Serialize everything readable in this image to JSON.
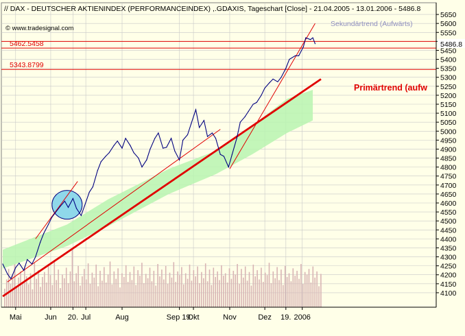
{
  "header": {
    "glyph": "//",
    "title": "DAX  - DEUTSCHER AKTIENINDEX (PERFORMANCEINDEX) ,.GDAXIS, Tageschart [Close] - 21.04.2005 - 13.01.2006 - 5486.8",
    "watermark": "© www.tradesignal.com"
  },
  "colors": {
    "background": "#ffffe8",
    "price_line": "#000080",
    "trend_line": "#e00000",
    "channel_fill": "#b8f5b0",
    "volume": "#d8b4b4",
    "grid": "#c8c8c8",
    "circle_fill": "#8fd8ea",
    "secondary_label": "#9090c0"
  },
  "chart_data": {
    "type": "line",
    "title": "DAX  - DEUTSCHER AKTIENINDEX (PERFORMANCEINDEX) ,.GDAXIS, Tageschart [Close] - 21.04.2005 - 13.01.2006 - 5486.8",
    "x_range": [
      "2005-04-21",
      "2006-01-13"
    ],
    "ylim": [
      4050,
      5700
    ],
    "y_ticks": [
      4100,
      4150,
      4200,
      4250,
      4300,
      4350,
      4400,
      4450,
      4500,
      4550,
      4600,
      4650,
      4700,
      4750,
      4800,
      4850,
      4900,
      4950,
      5000,
      5050,
      5100,
      5150,
      5200,
      5250,
      5300,
      5350,
      5400,
      5450,
      5500,
      5550,
      5600,
      5650
    ],
    "x_tick_labels": [
      {
        "date": "2005-05-02",
        "label": "Mai"
      },
      {
        "date": "2005-06-01",
        "label": "Jun"
      },
      {
        "date": "2005-06-20",
        "label": "20."
      },
      {
        "date": "2005-07-01",
        "label": "Jul"
      },
      {
        "date": "2005-08-01",
        "label": "Aug"
      },
      {
        "date": "2005-09-19",
        "label": "Sep 19."
      },
      {
        "date": "2005-10-01",
        "label": "Okt"
      },
      {
        "date": "2005-11-01",
        "label": "Nov"
      },
      {
        "date": "2005-12-01",
        "label": "Dez"
      },
      {
        "date": "2005-12-19",
        "label": "19."
      },
      {
        "date": "2006-01-02",
        "label": "2006"
      }
    ],
    "last_value_label": "5486.8",
    "horizontal_levels": [
      {
        "value": 5500,
        "label": ""
      },
      {
        "value": 5462.5458,
        "label": "5462.5458"
      },
      {
        "value": 5343.8799,
        "label": "5343.8799"
      }
    ],
    "series": [
      {
        "values": [
          {
            "x": "2005-04-21",
            "y": 4260
          },
          {
            "x": "2005-04-25",
            "y": 4205
          },
          {
            "x": "2005-04-28",
            "y": 4178
          },
          {
            "x": "2005-05-02",
            "y": 4240
          },
          {
            "x": "2005-05-05",
            "y": 4265
          },
          {
            "x": "2005-05-09",
            "y": 4225
          },
          {
            "x": "2005-05-12",
            "y": 4285
          },
          {
            "x": "2005-05-16",
            "y": 4260
          },
          {
            "x": "2005-05-19",
            "y": 4300
          },
          {
            "x": "2005-05-23",
            "y": 4380
          },
          {
            "x": "2005-05-26",
            "y": 4430
          },
          {
            "x": "2005-05-30",
            "y": 4480
          },
          {
            "x": "2005-06-02",
            "y": 4520
          },
          {
            "x": "2005-06-06",
            "y": 4555
          },
          {
            "x": "2005-06-09",
            "y": 4580
          },
          {
            "x": "2005-06-13",
            "y": 4610
          },
          {
            "x": "2005-06-16",
            "y": 4575
          },
          {
            "x": "2005-06-20",
            "y": 4625
          },
          {
            "x": "2005-06-23",
            "y": 4570
          },
          {
            "x": "2005-06-27",
            "y": 4530
          },
          {
            "x": "2005-06-30",
            "y": 4585
          },
          {
            "x": "2005-07-04",
            "y": 4660
          },
          {
            "x": "2005-07-07",
            "y": 4690
          },
          {
            "x": "2005-07-11",
            "y": 4780
          },
          {
            "x": "2005-07-14",
            "y": 4830
          },
          {
            "x": "2005-07-18",
            "y": 4860
          },
          {
            "x": "2005-07-21",
            "y": 4880
          },
          {
            "x": "2005-07-25",
            "y": 4920
          },
          {
            "x": "2005-07-28",
            "y": 4945
          },
          {
            "x": "2005-08-01",
            "y": 4905
          },
          {
            "x": "2005-08-04",
            "y": 4960
          },
          {
            "x": "2005-08-08",
            "y": 4920
          },
          {
            "x": "2005-08-11",
            "y": 4880
          },
          {
            "x": "2005-08-15",
            "y": 4850
          },
          {
            "x": "2005-08-18",
            "y": 4800
          },
          {
            "x": "2005-08-22",
            "y": 4840
          },
          {
            "x": "2005-08-25",
            "y": 4900
          },
          {
            "x": "2005-08-29",
            "y": 4960
          },
          {
            "x": "2005-09-01",
            "y": 4990
          },
          {
            "x": "2005-09-05",
            "y": 4905
          },
          {
            "x": "2005-09-08",
            "y": 4910
          },
          {
            "x": "2005-09-12",
            "y": 4960
          },
          {
            "x": "2005-09-15",
            "y": 4890
          },
          {
            "x": "2005-09-19",
            "y": 4840
          },
          {
            "x": "2005-09-22",
            "y": 4950
          },
          {
            "x": "2005-09-26",
            "y": 4980
          },
          {
            "x": "2005-09-29",
            "y": 5040
          },
          {
            "x": "2005-10-03",
            "y": 5120
          },
          {
            "x": "2005-10-06",
            "y": 5020
          },
          {
            "x": "2005-10-10",
            "y": 5060
          },
          {
            "x": "2005-10-13",
            "y": 4970
          },
          {
            "x": "2005-10-17",
            "y": 4990
          },
          {
            "x": "2005-10-20",
            "y": 4960
          },
          {
            "x": "2005-10-24",
            "y": 4870
          },
          {
            "x": "2005-10-27",
            "y": 4860
          },
          {
            "x": "2005-10-31",
            "y": 4800
          },
          {
            "x": "2005-11-03",
            "y": 4870
          },
          {
            "x": "2005-11-07",
            "y": 4960
          },
          {
            "x": "2005-11-10",
            "y": 5050
          },
          {
            "x": "2005-11-14",
            "y": 5080
          },
          {
            "x": "2005-11-17",
            "y": 5110
          },
          {
            "x": "2005-11-21",
            "y": 5150
          },
          {
            "x": "2005-11-24",
            "y": 5160
          },
          {
            "x": "2005-11-28",
            "y": 5200
          },
          {
            "x": "2005-12-01",
            "y": 5240
          },
          {
            "x": "2005-12-05",
            "y": 5270
          },
          {
            "x": "2005-12-08",
            "y": 5290
          },
          {
            "x": "2005-12-12",
            "y": 5275
          },
          {
            "x": "2005-12-15",
            "y": 5300
          },
          {
            "x": "2005-12-19",
            "y": 5350
          },
          {
            "x": "2005-12-22",
            "y": 5400
          },
          {
            "x": "2005-12-27",
            "y": 5420
          },
          {
            "x": "2005-12-30",
            "y": 5420
          },
          {
            "x": "2006-01-03",
            "y": 5470
          },
          {
            "x": "2006-01-05",
            "y": 5520
          },
          {
            "x": "2006-01-09",
            "y": 5510
          },
          {
            "x": "2006-01-11",
            "y": 5520
          },
          {
            "x": "2006-01-13",
            "y": 5487
          }
        ]
      }
    ],
    "trend_lines": [
      {
        "label": "Primärtrend (aufw",
        "from": {
          "x": "2005-04-21",
          "y": 4080
        },
        "to": {
          "x": "2006-01-18",
          "y": 5290
        }
      },
      {
        "label": "Sekundärtrend (Aufwärts)",
        "from": {
          "x": "2005-11-01",
          "y": 4790
        },
        "to": {
          "x": "2006-01-13",
          "y": 5600
        }
      },
      {
        "label": "",
        "from": {
          "x": "2005-04-25",
          "y": 4160
        },
        "to": {
          "x": "2005-10-24",
          "y": 5010
        }
      },
      {
        "label": "",
        "from": {
          "x": "2005-05-19",
          "y": 4400
        },
        "to": {
          "x": "2005-06-24",
          "y": 4720
        }
      }
    ],
    "channel_band": [
      {
        "x": "2005-04-21",
        "upper": 4340,
        "lower": 4235
      },
      {
        "x": "2005-06-15",
        "upper": 4480,
        "lower": 4360
      },
      {
        "x": "2005-07-20",
        "upper": 4620,
        "lower": 4470
      },
      {
        "x": "2005-09-10",
        "upper": 4790,
        "lower": 4650
      },
      {
        "x": "2005-10-20",
        "upper": 4890,
        "lower": 4760
      },
      {
        "x": "2005-11-20",
        "upper": 5030,
        "lower": 4870
      },
      {
        "x": "2005-12-20",
        "upper": 5180,
        "lower": 4990
      },
      {
        "x": "2006-01-11",
        "upper": 5230,
        "lower": 5060
      }
    ],
    "highlight_circle": {
      "x": "2005-06-15",
      "y": 4590
    },
    "volume_bars": [
      0.3,
      0.45,
      0.62,
      0.38,
      0.52,
      0.7,
      0.34,
      0.48,
      0.58,
      0.41,
      0.66,
      0.5,
      0.37,
      0.55,
      0.29,
      0.72,
      0.46,
      0.6,
      0.33,
      0.49,
      0.57,
      0.4,
      0.68,
      0.52,
      0.36,
      0.75,
      0.44,
      0.61,
      0.31,
      0.53,
      0.47,
      0.64,
      0.39,
      0.58,
      0.93,
      0.42,
      0.55,
      0.67,
      0.35,
      0.5,
      0.62,
      0.45,
      0.71,
      0.38,
      0.56,
      0.48,
      0.69,
      0.34,
      0.59,
      0.43,
      0.65,
      0.4,
      0.53,
      0.74,
      0.37,
      0.58,
      0.46,
      0.63,
      0.32,
      0.55,
      0.49,
      0.68,
      0.41,
      0.57,
      0.44,
      0.66,
      0.36,
      0.6,
      0.51,
      0.72,
      0.39,
      0.54,
      0.47,
      0.64,
      0.42,
      0.59,
      0.35,
      0.7,
      0.5,
      0.61,
      0.45,
      0.67,
      0.38,
      0.56,
      0.48,
      0.73,
      0.41,
      0.58,
      0.52,
      0.65,
      0.37,
      0.55,
      0.46,
      0.69,
      0.43,
      0.6,
      0.5,
      0.66,
      0.39,
      0.57,
      0.47,
      0.71,
      0.42,
      0.61,
      0.36,
      0.64,
      0.49,
      0.58,
      0.44,
      0.68,
      0.51,
      0.55,
      0.4,
      0.63,
      0.46,
      0.59,
      0.53,
      0.7,
      0.38,
      0.62,
      0.48,
      0.66,
      0.43,
      0.57,
      0.35,
      0.69,
      0.5,
      0.6,
      0.45,
      0.64,
      0.41,
      0.56,
      0.52,
      0.72,
      0.39,
      0.58,
      0.47,
      0.65,
      0.44,
      0.61,
      0.36,
      0.67,
      0.49,
      0.55,
      0.42,
      0.63,
      0.51,
      0.59,
      0.46,
      0.7,
      0.38,
      0.57,
      0.53,
      0.62,
      0.4,
      0.66,
      0.48,
      0.58,
      0.34,
      0.54
    ],
    "grid": true
  }
}
